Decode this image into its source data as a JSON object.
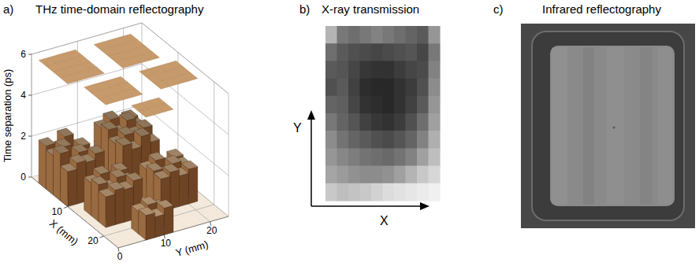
{
  "chart_data": {
    "type": "surface3d",
    "title": "THz time-domain reflectography",
    "x_label": "X (mm)",
    "y_label": "Y (mm)",
    "z_label": "Time separation (ps)",
    "x": [
      0,
      2,
      4,
      6,
      8,
      10,
      12,
      14,
      16,
      18,
      20,
      22
    ],
    "y": [
      0,
      2,
      4,
      6,
      8,
      10,
      12,
      14,
      16,
      18,
      20,
      22
    ],
    "xlim": [
      0,
      24
    ],
    "ylim": [
      0,
      24
    ],
    "zlim": [
      0,
      6
    ],
    "xticks": [
      10,
      20
    ],
    "yticks": [
      0,
      10,
      20
    ],
    "zticks": [
      0,
      2,
      4,
      6
    ],
    "grid": true,
    "values": [
      [
        0,
        0,
        0,
        0,
        0,
        0,
        0,
        0,
        0,
        0,
        0,
        0
      ],
      [
        2.1,
        1.8,
        2.3,
        1.6,
        0,
        0,
        2.2,
        2.5,
        2.0,
        2.3,
        0,
        0
      ],
      [
        1.9,
        2.2,
        1.7,
        2.0,
        0,
        0,
        2.4,
        2.1,
        2.6,
        2.2,
        0,
        0
      ],
      [
        2.3,
        1.6,
        2.1,
        1.8,
        0,
        0,
        2.0,
        2.3,
        2.2,
        2.4,
        0,
        0
      ],
      [
        1.7,
        2.0,
        1.9,
        2.2,
        0,
        0,
        2.2,
        1.9,
        2.4,
        2.0,
        0,
        0
      ],
      [
        0,
        0,
        0,
        0,
        0,
        0,
        0,
        0,
        0,
        0,
        0,
        0
      ],
      [
        0,
        1.6,
        1.9,
        1.5,
        1.8,
        0,
        0,
        1.5,
        1.8,
        1.4,
        1.7,
        0
      ],
      [
        0,
        1.8,
        1.5,
        1.9,
        1.6,
        0,
        0,
        1.7,
        1.4,
        1.8,
        1.6,
        0
      ],
      [
        0,
        1.5,
        1.7,
        1.6,
        1.9,
        0,
        0,
        1.6,
        1.8,
        1.5,
        1.7,
        0
      ],
      [
        0,
        0,
        0,
        0,
        0,
        0,
        0,
        0,
        0,
        0,
        0,
        0
      ],
      [
        0,
        0,
        0,
        1.1,
        1.3,
        1.0,
        0,
        0,
        0,
        0,
        0,
        0
      ],
      [
        0,
        0,
        0,
        1.2,
        1.0,
        1.3,
        0,
        0,
        0,
        0,
        0,
        0
      ]
    ]
  },
  "panels": [
    {
      "letter": "a)"
    },
    {
      "letter": "b)",
      "title": "X-ray transmission",
      "x_label": "X",
      "y_label": "Y",
      "intensity": [
        [
          180,
          120,
          110,
          120,
          130,
          120,
          110,
          100,
          90,
          150
        ],
        [
          110,
          90,
          80,
          75,
          70,
          75,
          80,
          85,
          70,
          120
        ],
        [
          90,
          85,
          70,
          55,
          50,
          50,
          60,
          70,
          75,
          130
        ],
        [
          80,
          90,
          65,
          45,
          40,
          40,
          50,
          60,
          80,
          140
        ],
        [
          100,
          95,
          70,
          50,
          45,
          40,
          50,
          65,
          90,
          150
        ],
        [
          120,
          100,
          85,
          65,
          55,
          50,
          60,
          80,
          110,
          160
        ],
        [
          140,
          115,
          100,
          90,
          80,
          75,
          85,
          100,
          130,
          175
        ],
        [
          150,
          135,
          125,
          115,
          110,
          105,
          115,
          130,
          160,
          190
        ],
        [
          165,
          155,
          145,
          140,
          140,
          145,
          160,
          180,
          200,
          215
        ],
        [
          200,
          190,
          195,
          200,
          210,
          220,
          225,
          230,
          235,
          240
        ]
      ]
    },
    {
      "letter": "c)",
      "title": "Infrared reflectography"
    }
  ]
}
